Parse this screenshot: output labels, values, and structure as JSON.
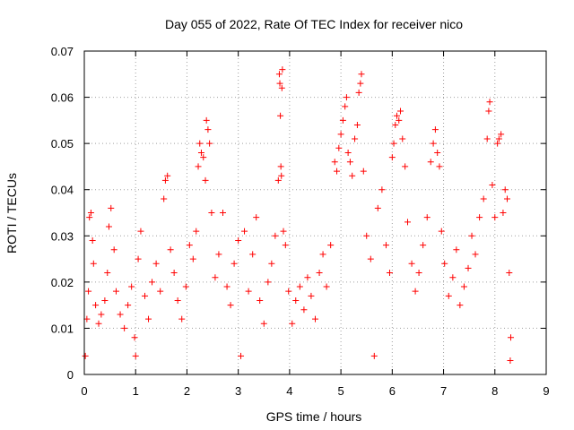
{
  "chart_data": {
    "type": "scatter",
    "title": "Day 055 of 2022, Rate Of TEC Index for receiver nico",
    "xlabel": "GPS time / hours",
    "ylabel": "ROTI / TECUs",
    "xlim": [
      0,
      9
    ],
    "ylim": [
      0,
      0.07
    ],
    "xticks": [
      "0",
      "1",
      "2",
      "3",
      "4",
      "5",
      "6",
      "7",
      "8",
      "9"
    ],
    "yticks": [
      "0",
      "0.01",
      "0.02",
      "0.03",
      "0.04",
      "0.05",
      "0.06",
      "0.07"
    ],
    "grid": true,
    "marker": "plus",
    "series_color": "#ff0000",
    "series": [
      {
        "name": "ROTI",
        "points": [
          [
            0.02,
            0.004
          ],
          [
            0.05,
            0.012
          ],
          [
            0.08,
            0.018
          ],
          [
            0.1,
            0.034
          ],
          [
            0.13,
            0.035
          ],
          [
            0.16,
            0.029
          ],
          [
            0.18,
            0.024
          ],
          [
            0.22,
            0.015
          ],
          [
            0.28,
            0.011
          ],
          [
            0.33,
            0.013
          ],
          [
            0.4,
            0.016
          ],
          [
            0.45,
            0.022
          ],
          [
            0.48,
            0.032
          ],
          [
            0.52,
            0.036
          ],
          [
            0.58,
            0.027
          ],
          [
            0.62,
            0.018
          ],
          [
            0.7,
            0.013
          ],
          [
            0.78,
            0.01
          ],
          [
            0.85,
            0.015
          ],
          [
            0.92,
            0.019
          ],
          [
            0.98,
            0.008
          ],
          [
            1.0,
            0.004
          ],
          [
            1.05,
            0.025
          ],
          [
            1.1,
            0.031
          ],
          [
            1.18,
            0.017
          ],
          [
            1.25,
            0.012
          ],
          [
            1.32,
            0.02
          ],
          [
            1.4,
            0.024
          ],
          [
            1.48,
            0.018
          ],
          [
            1.55,
            0.038
          ],
          [
            1.58,
            0.042
          ],
          [
            1.62,
            0.043
          ],
          [
            1.68,
            0.027
          ],
          [
            1.75,
            0.022
          ],
          [
            1.82,
            0.016
          ],
          [
            1.9,
            0.012
          ],
          [
            1.98,
            0.019
          ],
          [
            2.05,
            0.028
          ],
          [
            2.12,
            0.025
          ],
          [
            2.18,
            0.031
          ],
          [
            2.22,
            0.045
          ],
          [
            2.25,
            0.05
          ],
          [
            2.28,
            0.048
          ],
          [
            2.32,
            0.047
          ],
          [
            2.36,
            0.042
          ],
          [
            2.38,
            0.055
          ],
          [
            2.41,
            0.053
          ],
          [
            2.44,
            0.05
          ],
          [
            2.48,
            0.035
          ],
          [
            2.55,
            0.021
          ],
          [
            2.62,
            0.026
          ],
          [
            2.7,
            0.035
          ],
          [
            2.78,
            0.019
          ],
          [
            2.85,
            0.015
          ],
          [
            2.92,
            0.024
          ],
          [
            3.0,
            0.029
          ],
          [
            3.05,
            0.004
          ],
          [
            3.12,
            0.031
          ],
          [
            3.2,
            0.018
          ],
          [
            3.28,
            0.026
          ],
          [
            3.35,
            0.034
          ],
          [
            3.42,
            0.016
          ],
          [
            3.5,
            0.011
          ],
          [
            3.58,
            0.02
          ],
          [
            3.65,
            0.024
          ],
          [
            3.72,
            0.03
          ],
          [
            3.78,
            0.042
          ],
          [
            3.8,
            0.065
          ],
          [
            3.81,
            0.063
          ],
          [
            3.82,
            0.056
          ],
          [
            3.83,
            0.045
          ],
          [
            3.84,
            0.043
          ],
          [
            3.85,
            0.062
          ],
          [
            3.86,
            0.066
          ],
          [
            3.88,
            0.031
          ],
          [
            3.92,
            0.028
          ],
          [
            3.98,
            0.018
          ],
          [
            4.05,
            0.011
          ],
          [
            4.12,
            0.016
          ],
          [
            4.2,
            0.019
          ],
          [
            4.28,
            0.014
          ],
          [
            4.35,
            0.021
          ],
          [
            4.42,
            0.017
          ],
          [
            4.5,
            0.012
          ],
          [
            4.58,
            0.022
          ],
          [
            4.65,
            0.026
          ],
          [
            4.72,
            0.019
          ],
          [
            4.8,
            0.028
          ],
          [
            4.88,
            0.046
          ],
          [
            4.92,
            0.044
          ],
          [
            4.96,
            0.049
          ],
          [
            5.0,
            0.052
          ],
          [
            5.04,
            0.055
          ],
          [
            5.08,
            0.058
          ],
          [
            5.11,
            0.06
          ],
          [
            5.14,
            0.048
          ],
          [
            5.18,
            0.046
          ],
          [
            5.22,
            0.043
          ],
          [
            5.27,
            0.051
          ],
          [
            5.32,
            0.054
          ],
          [
            5.35,
            0.061
          ],
          [
            5.38,
            0.063
          ],
          [
            5.4,
            0.065
          ],
          [
            5.44,
            0.044
          ],
          [
            5.5,
            0.03
          ],
          [
            5.58,
            0.025
          ],
          [
            5.65,
            0.004
          ],
          [
            5.72,
            0.036
          ],
          [
            5.8,
            0.04
          ],
          [
            5.88,
            0.028
          ],
          [
            5.95,
            0.022
          ],
          [
            6.0,
            0.047
          ],
          [
            6.03,
            0.05
          ],
          [
            6.06,
            0.054
          ],
          [
            6.09,
            0.056
          ],
          [
            6.13,
            0.055
          ],
          [
            6.16,
            0.057
          ],
          [
            6.2,
            0.051
          ],
          [
            6.25,
            0.045
          ],
          [
            6.3,
            0.033
          ],
          [
            6.38,
            0.024
          ],
          [
            6.45,
            0.018
          ],
          [
            6.52,
            0.022
          ],
          [
            6.6,
            0.028
          ],
          [
            6.68,
            0.034
          ],
          [
            6.75,
            0.046
          ],
          [
            6.8,
            0.05
          ],
          [
            6.84,
            0.053
          ],
          [
            6.88,
            0.048
          ],
          [
            6.92,
            0.045
          ],
          [
            6.96,
            0.031
          ],
          [
            7.02,
            0.024
          ],
          [
            7.1,
            0.017
          ],
          [
            7.18,
            0.021
          ],
          [
            7.25,
            0.027
          ],
          [
            7.32,
            0.015
          ],
          [
            7.4,
            0.019
          ],
          [
            7.48,
            0.023
          ],
          [
            7.55,
            0.03
          ],
          [
            7.62,
            0.026
          ],
          [
            7.7,
            0.034
          ],
          [
            7.78,
            0.038
          ],
          [
            7.85,
            0.051
          ],
          [
            7.88,
            0.057
          ],
          [
            7.9,
            0.059
          ],
          [
            7.95,
            0.041
          ],
          [
            8.0,
            0.034
          ],
          [
            8.05,
            0.05
          ],
          [
            8.08,
            0.051
          ],
          [
            8.12,
            0.052
          ],
          [
            8.16,
            0.035
          ],
          [
            8.2,
            0.04
          ],
          [
            8.24,
            0.038
          ],
          [
            8.28,
            0.022
          ],
          [
            8.3,
            0.003
          ],
          [
            8.31,
            0.008
          ]
        ]
      }
    ]
  }
}
